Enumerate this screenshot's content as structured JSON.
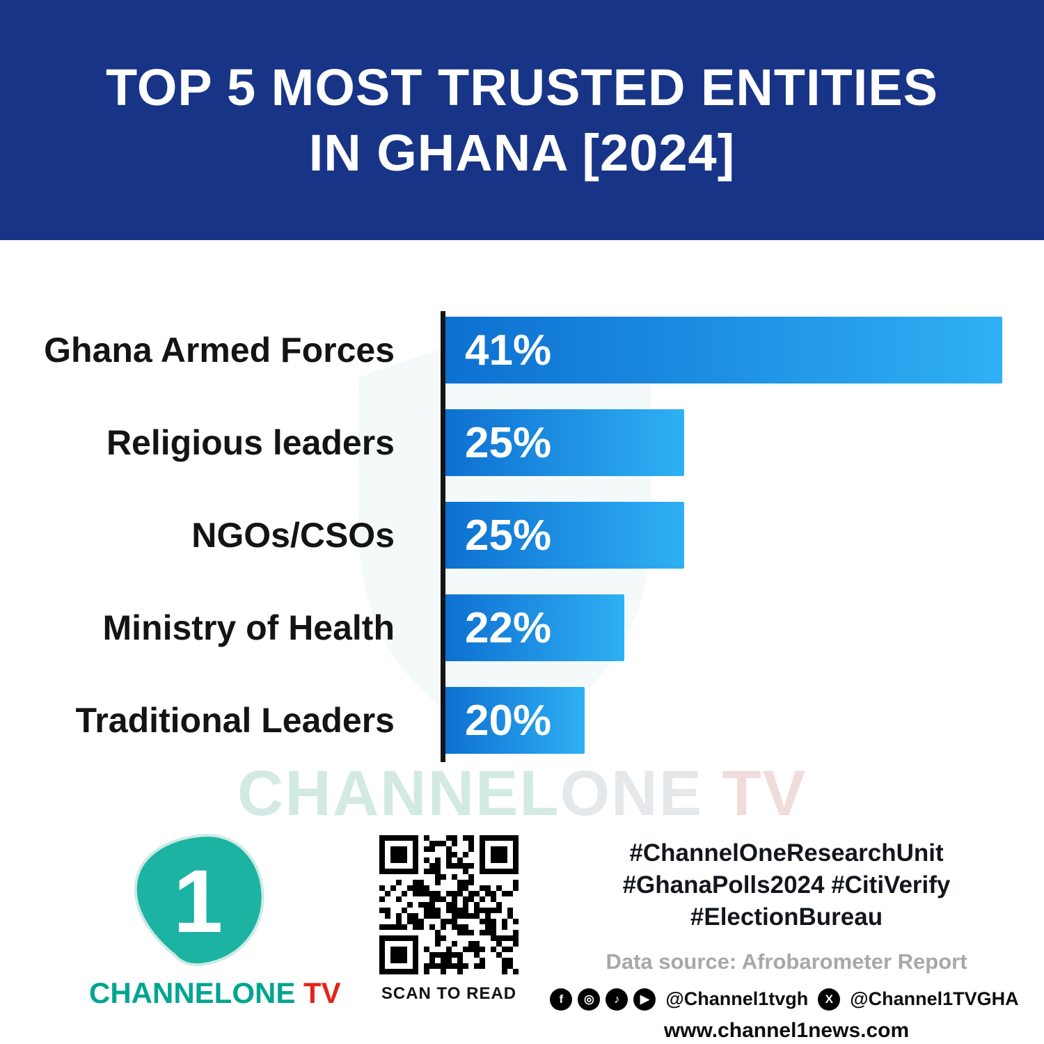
{
  "header": {
    "title_line1": "TOP 5 MOST TRUSTED ENTITIES",
    "title_line2": "IN GHANA [2024]"
  },
  "chart_data": {
    "type": "bar",
    "orientation": "horizontal",
    "title": "Top 5 Most Trusted Entities in Ghana [2024]",
    "categories": [
      "Ghana Armed Forces",
      "Religious leaders",
      "NGOs/CSOs",
      "Ministry of Health",
      "Traditional Leaders"
    ],
    "values": [
      41,
      25,
      25,
      22,
      20
    ],
    "value_labels": [
      "41%",
      "25%",
      "25%",
      "22%",
      "20%"
    ],
    "xlabel": "",
    "ylabel": "",
    "xlim_visual": [
      13,
      41
    ],
    "grid": false,
    "legend": false,
    "bar_color_start": "#0d70d1",
    "bar_color_end": "#2fb0f4"
  },
  "watermark": {
    "part1": "CHANNEL",
    "part2": "ONE",
    "part3": " TV"
  },
  "footer": {
    "logo_numeral": "1",
    "brand_channel": "CHANNELONE",
    "brand_tv": " TV",
    "qr_caption": "SCAN TO READ",
    "hashtags_line1": "#ChannelOneResearchUnit",
    "hashtags_line2": "#GhanaPolls2024 #CitiVerify",
    "hashtags_line3": "#ElectionBureau",
    "data_source": "Data source: Afrobarometer Report",
    "website": "www.channel1news.com",
    "social": {
      "icons": {
        "facebook": "f",
        "instagram": "◎",
        "tiktok": "♪",
        "youtube": "▶",
        "x": "X"
      },
      "handle_main": "@Channel1tvgh",
      "handle_x": "@Channel1TVGHA"
    }
  },
  "colors": {
    "header_bg": "#183487",
    "axis": "#151515",
    "brand_teal": "#00a591",
    "brand_red": "#e4251c"
  }
}
